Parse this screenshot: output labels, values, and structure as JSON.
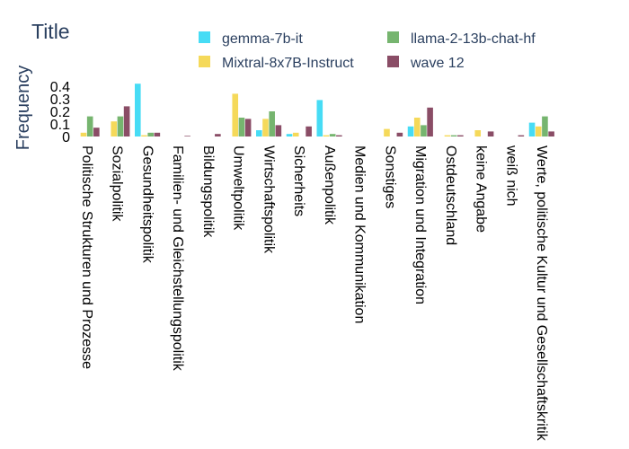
{
  "chart_data": {
    "type": "bar",
    "title": "Title",
    "xlabel": "",
    "ylabel": "Frequency",
    "ylim": [
      0,
      0.43
    ],
    "yticks": [
      0,
      0.1,
      0.2,
      0.3,
      0.4
    ],
    "ytick_labels": [
      "0",
      "0.1",
      "0.2",
      "0.3",
      "0.4"
    ],
    "grid": false,
    "legend_position": "top",
    "categories": [
      "Politische Strukturen und Prozesse",
      "Sozialpolitik",
      "Gesundheitspolitik",
      "Familien- und Gleichstellungspolitik",
      "Bildungspolitik",
      "Umweltpolitik",
      "Wirtschaftspolitik",
      "Sicherheits",
      "Außenpolitik",
      "Medien und Kommunikation",
      "Sonstiges",
      "Migration und Integration",
      "Ostdeutschland",
      "keine Angabe",
      "weiß nich",
      "Werte, politische Kultur und Gesellschaftskritik"
    ],
    "series": [
      {
        "name": "gemma-7b-it",
        "color": "#19d3f3",
        "values": [
          0.0,
          0.0,
          0.42,
          0.0,
          0.0,
          0.0,
          0.05,
          0.02,
          0.29,
          0.0,
          0.0,
          0.08,
          0.0,
          0.0,
          0.0,
          0.11
        ]
      },
      {
        "name": "Mixtral-8x7B-Instruct",
        "color": "#f2d031",
        "values": [
          0.03,
          0.12,
          0.01,
          0.0,
          0.0,
          0.34,
          0.14,
          0.03,
          0.01,
          0.0,
          0.06,
          0.15,
          0.01,
          0.05,
          0.0,
          0.08
        ]
      },
      {
        "name": "llama-2-13b-chat-hf",
        "color": "#54a24b",
        "values": [
          0.16,
          0.16,
          0.03,
          0.0,
          0.0,
          0.15,
          0.2,
          0.0,
          0.02,
          0.0,
          0.0,
          0.09,
          0.01,
          0.0,
          0.0,
          0.16
        ]
      },
      {
        "name": "wave 12",
        "color": "#6d2140",
        "values": [
          0.07,
          0.24,
          0.03,
          0.005,
          0.02,
          0.14,
          0.09,
          0.08,
          0.01,
          0.0,
          0.03,
          0.23,
          0.01,
          0.04,
          0.01,
          0.04
        ]
      }
    ]
  }
}
